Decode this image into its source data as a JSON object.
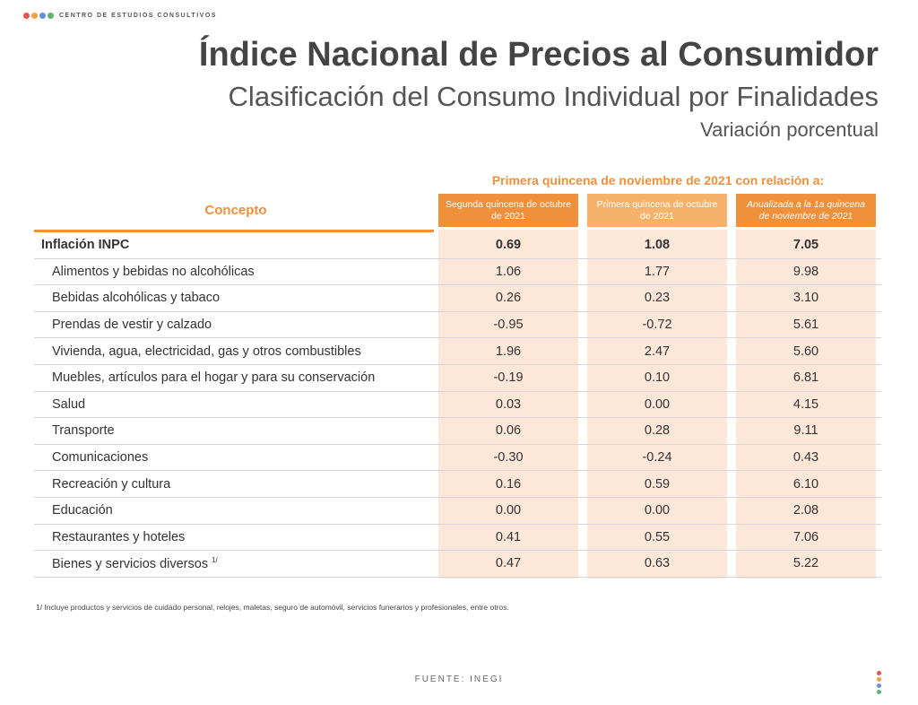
{
  "brand": {
    "text": "CENTRO DE ESTUDIOS CONSULTIVOS",
    "dot_colors": [
      "#e8564a",
      "#f3a23b",
      "#6a8fd4",
      "#5bb36a"
    ]
  },
  "header": {
    "title": "Índice Nacional de Precios al Consumidor",
    "subtitle": "Clasificación del Consumo Individual por Finalidades",
    "subtitle2": "Variación porcentual"
  },
  "table": {
    "group_header": "Primera quincena de noviembre de 2021 con relación a:",
    "concept_header": "Concepto",
    "columns": [
      "Segunda quincena de octubre de 2021",
      "Primera quincena de octubre de 2021",
      "Anualizada a la 1a quincena de noviembre de 2021"
    ],
    "main_row": {
      "label": "Inflación INPC",
      "values": [
        "0.69",
        "1.08",
        "7.05"
      ]
    },
    "rows": [
      {
        "label": "Alimentos y bebidas no alcohólicas",
        "values": [
          "1.06",
          "1.77",
          "9.98"
        ]
      },
      {
        "label": "Bebidas alcohólicas y tabaco",
        "values": [
          "0.26",
          "0.23",
          "3.10"
        ]
      },
      {
        "label": "Prendas de vestir y calzado",
        "values": [
          "-0.95",
          "-0.72",
          "5.61"
        ]
      },
      {
        "label": "Vivienda, agua, electricidad, gas y otros combustibles",
        "values": [
          "1.96",
          "2.47",
          "5.60"
        ]
      },
      {
        "label": "Muebles, artículos para el hogar y para su conservación",
        "values": [
          "-0.19",
          "0.10",
          "6.81"
        ]
      },
      {
        "label": "Salud",
        "values": [
          "0.03",
          "0.00",
          "4.15"
        ]
      },
      {
        "label": "Transporte",
        "values": [
          "0.06",
          "0.28",
          "9.11"
        ]
      },
      {
        "label": "Comunicaciones",
        "values": [
          "-0.30",
          "-0.24",
          "0.43"
        ]
      },
      {
        "label": "Recreación y cultura",
        "values": [
          "0.16",
          "0.59",
          "6.10"
        ]
      },
      {
        "label": "Educación",
        "values": [
          "0.00",
          "0.00",
          "2.08"
        ]
      },
      {
        "label": "Restaurantes y hoteles",
        "values": [
          "0.41",
          "0.55",
          "7.06"
        ]
      },
      {
        "label": "Bienes y servicios diversos",
        "sup": "1/",
        "values": [
          "0.47",
          "0.63",
          "5.22"
        ]
      }
    ]
  },
  "footnote": "1/  Incluye productos y servicios de cuidado personal, relojes, maletas, seguro de automóvil, servicios funerarios y profesionales, entre otros.",
  "source": "FUENTE: INEGI",
  "accent_color": "#f0903a"
}
